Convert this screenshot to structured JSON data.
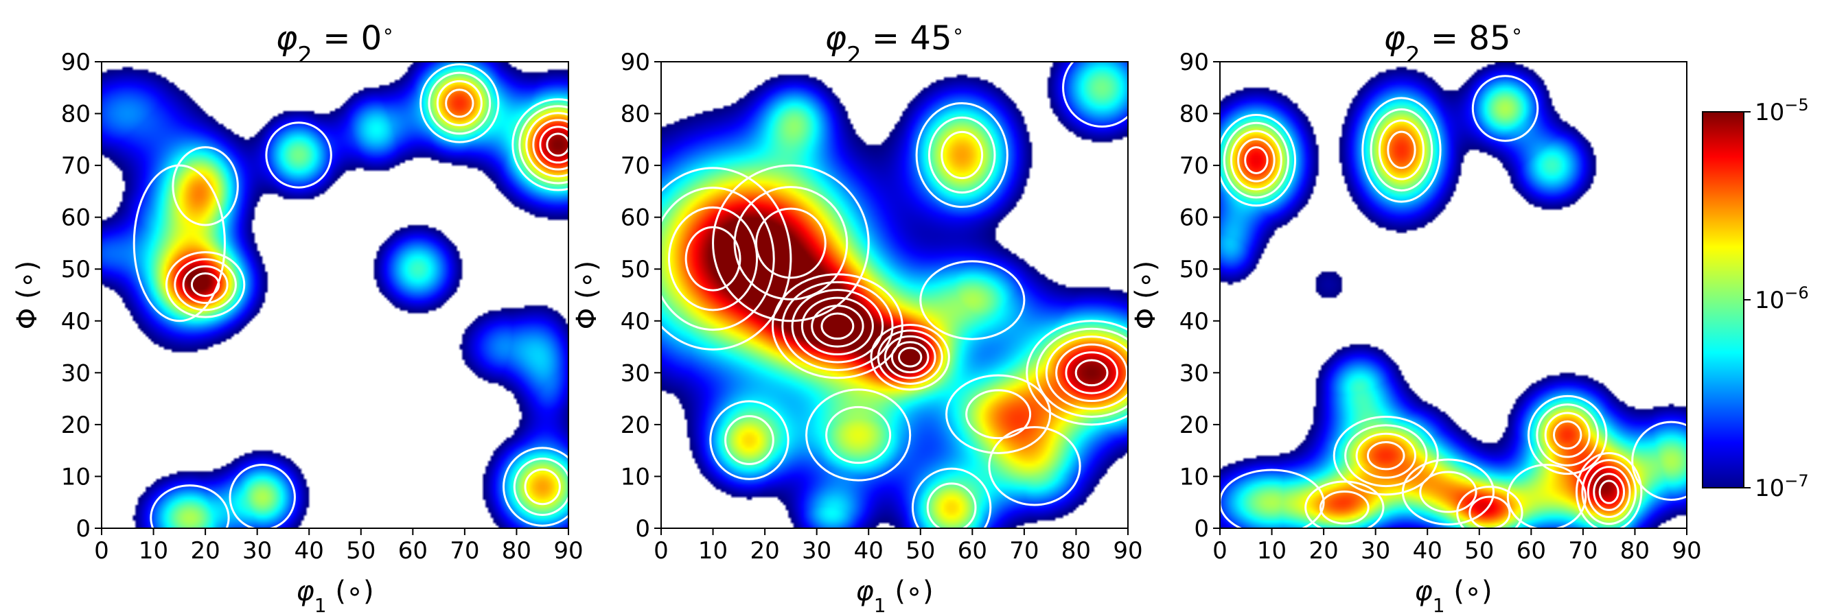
{
  "chart_data": [
    {
      "type": "heatmap",
      "title": {
        "base": "φ",
        "sub": "2",
        "eq": " = 0",
        "unit": "∘"
      },
      "xlabel": {
        "base": "φ",
        "sub": "1",
        "unit": " (∘)"
      },
      "ylabel": "Φ (∘)",
      "xlim": [
        0,
        90
      ],
      "ylim": [
        0,
        90
      ],
      "xticks": [
        "0",
        "10",
        "20",
        "30",
        "40",
        "50",
        "60",
        "70",
        "80",
        "90"
      ],
      "yticks": [
        "0",
        "10",
        "20",
        "30",
        "40",
        "50",
        "60",
        "70",
        "80",
        "90"
      ],
      "blobs": [
        {
          "x": 5,
          "y": 80,
          "sx": 8,
          "sy": 6,
          "level": 0.35
        },
        {
          "x": 0,
          "y": 53,
          "sx": 5,
          "sy": 4,
          "level": 0.3
        },
        {
          "x": 15,
          "y": 55,
          "sx": 7,
          "sy": 12,
          "level": 0.55
        },
        {
          "x": 20,
          "y": 47,
          "sx": 6,
          "sy": 5,
          "level": 0.85
        },
        {
          "x": 20,
          "y": 66,
          "sx": 5,
          "sy": 6,
          "level": 0.6
        },
        {
          "x": 38,
          "y": 72,
          "sx": 5,
          "sy": 5,
          "level": 0.55
        },
        {
          "x": 53,
          "y": 77,
          "sx": 5,
          "sy": 5,
          "level": 0.45
        },
        {
          "x": 69,
          "y": 82,
          "sx": 6,
          "sy": 6,
          "level": 0.85
        },
        {
          "x": 88,
          "y": 74,
          "sx": 7,
          "sy": 7,
          "level": 1.0
        },
        {
          "x": 61,
          "y": 50,
          "sx": 5,
          "sy": 5,
          "level": 0.5
        },
        {
          "x": 78,
          "y": 35,
          "sx": 6,
          "sy": 5,
          "level": 0.35
        },
        {
          "x": 86,
          "y": 30,
          "sx": 4,
          "sy": 8,
          "level": 0.35
        },
        {
          "x": 85,
          "y": 8,
          "sx": 6,
          "sy": 6,
          "level": 0.75
        },
        {
          "x": 17,
          "y": 2,
          "sx": 6,
          "sy": 5,
          "level": 0.6
        },
        {
          "x": 31,
          "y": 6,
          "sx": 5,
          "sy": 5,
          "level": 0.6
        }
      ]
    },
    {
      "type": "heatmap",
      "title": {
        "base": "φ",
        "sub": "2",
        "eq": " = 45",
        "unit": "∘"
      },
      "xlabel": {
        "base": "φ",
        "sub": "1",
        "unit": " (∘)"
      },
      "ylabel": "Φ (∘)",
      "xlim": [
        0,
        90
      ],
      "ylim": [
        0,
        90
      ],
      "xticks": [
        "0",
        "10",
        "20",
        "30",
        "40",
        "50",
        "60",
        "70",
        "80",
        "90"
      ],
      "yticks": [
        "0",
        "10",
        "20",
        "30",
        "40",
        "50",
        "60",
        "70",
        "80",
        "90"
      ],
      "blobs": [
        {
          "x": 10,
          "y": 52,
          "sx": 12,
          "sy": 14,
          "level": 0.85
        },
        {
          "x": 25,
          "y": 55,
          "sx": 12,
          "sy": 12,
          "level": 0.75
        },
        {
          "x": 34,
          "y": 39,
          "sx": 10,
          "sy": 8,
          "level": 1.0
        },
        {
          "x": 48,
          "y": 33,
          "sx": 6,
          "sy": 5,
          "level": 0.95
        },
        {
          "x": 83,
          "y": 30,
          "sx": 10,
          "sy": 8,
          "level": 1.0
        },
        {
          "x": 58,
          "y": 72,
          "sx": 7,
          "sy": 8,
          "level": 0.75
        },
        {
          "x": 85,
          "y": 85,
          "sx": 6,
          "sy": 6,
          "level": 0.55
        },
        {
          "x": 26,
          "y": 79,
          "sx": 5,
          "sy": 5,
          "level": 0.5
        },
        {
          "x": 17,
          "y": 17,
          "sx": 6,
          "sy": 6,
          "level": 0.7
        },
        {
          "x": 38,
          "y": 18,
          "sx": 8,
          "sy": 7,
          "level": 0.65
        },
        {
          "x": 56,
          "y": 4,
          "sx": 6,
          "sy": 6,
          "level": 0.7
        },
        {
          "x": 72,
          "y": 12,
          "sx": 7,
          "sy": 6,
          "level": 0.6
        },
        {
          "x": 33,
          "y": 3,
          "sx": 5,
          "sy": 4,
          "level": 0.45
        },
        {
          "x": 65,
          "y": 22,
          "sx": 8,
          "sy": 6,
          "level": 0.7
        },
        {
          "x": 60,
          "y": 44,
          "sx": 8,
          "sy": 6,
          "level": 0.6
        }
      ]
    },
    {
      "type": "heatmap",
      "title": {
        "base": "φ",
        "sub": "2",
        "eq": " = 85",
        "unit": "∘"
      },
      "xlabel": {
        "base": "φ",
        "sub": "1",
        "unit": " (∘)"
      },
      "ylabel": "Φ (∘)",
      "xlim": [
        0,
        90
      ],
      "ylim": [
        0,
        90
      ],
      "xticks": [
        "0",
        "10",
        "20",
        "30",
        "40",
        "50",
        "60",
        "70",
        "80",
        "90"
      ],
      "yticks": [
        "0",
        "10",
        "20",
        "30",
        "40",
        "50",
        "60",
        "70",
        "80",
        "90"
      ],
      "blobs": [
        {
          "x": 7,
          "y": 71,
          "sx": 6,
          "sy": 7,
          "level": 0.9
        },
        {
          "x": 2,
          "y": 55,
          "sx": 4,
          "sy": 5,
          "level": 0.4
        },
        {
          "x": 35,
          "y": 73,
          "sx": 6,
          "sy": 8,
          "level": 0.85
        },
        {
          "x": 55,
          "y": 81,
          "sx": 5,
          "sy": 5,
          "level": 0.6
        },
        {
          "x": 64,
          "y": 70,
          "sx": 5,
          "sy": 5,
          "level": 0.5
        },
        {
          "x": 21,
          "y": 47,
          "sx": 4,
          "sy": 4,
          "level": 0.15
        },
        {
          "x": 27,
          "y": 27,
          "sx": 5,
          "sy": 5,
          "level": 0.5
        },
        {
          "x": 32,
          "y": 14,
          "sx": 8,
          "sy": 6,
          "level": 0.85
        },
        {
          "x": 10,
          "y": 5,
          "sx": 8,
          "sy": 5,
          "level": 0.6
        },
        {
          "x": 24,
          "y": 4,
          "sx": 6,
          "sy": 4,
          "level": 0.7
        },
        {
          "x": 44,
          "y": 7,
          "sx": 7,
          "sy": 5,
          "level": 0.65
        },
        {
          "x": 52,
          "y": 3,
          "sx": 5,
          "sy": 4,
          "level": 0.7
        },
        {
          "x": 67,
          "y": 18,
          "sx": 6,
          "sy": 6,
          "level": 0.85
        },
        {
          "x": 75,
          "y": 7,
          "sx": 5,
          "sy": 6,
          "level": 0.95
        },
        {
          "x": 63,
          "y": 6,
          "sx": 6,
          "sy": 5,
          "level": 0.55
        },
        {
          "x": 87,
          "y": 13,
          "sx": 6,
          "sy": 6,
          "level": 0.6
        }
      ]
    }
  ],
  "colorbar": {
    "labels": [
      {
        "base": "10",
        "exp": "−5",
        "level": 1.0
      },
      {
        "base": "10",
        "exp": "−6",
        "level": 0.5
      },
      {
        "base": "10",
        "exp": "−7",
        "level": 0.0
      }
    ],
    "colormap": "jet",
    "scale": "log"
  }
}
